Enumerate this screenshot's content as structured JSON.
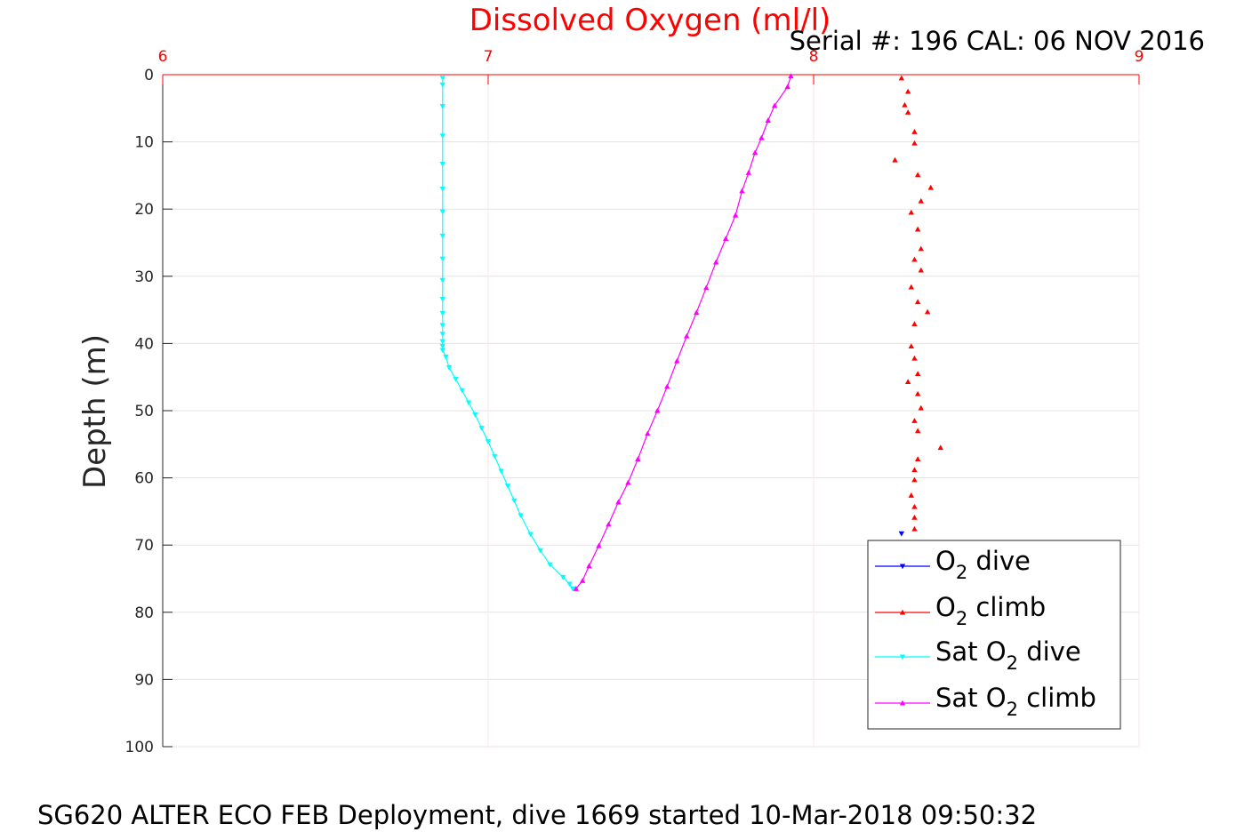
{
  "chart_data": {
    "type": "scatter",
    "title": "Dissolved Oxygen (ml/l)",
    "subtitle": "Serial #: 196  CAL: 06 NOV 2016",
    "xlabel": "",
    "ylabel": "Depth (m)",
    "footer": "SG620 ALTER ECO FEB Deployment, dive 1669 started 10-Mar-2018 09:50:32",
    "xlim": [
      6,
      9
    ],
    "ylim": [
      0,
      100
    ],
    "y_reversed": true,
    "x_axis_position": "top",
    "x_ticks": [
      6,
      7,
      8,
      9
    ],
    "y_ticks": [
      0,
      10,
      20,
      30,
      40,
      50,
      60,
      70,
      80,
      90,
      100
    ],
    "grid": true,
    "legend_position": "bottom-right",
    "colors": {
      "title": "#ff0000",
      "x_ticks": "#ff0000",
      "o2_dive": "#0000ff",
      "o2_climb": "#ff0000",
      "sat_o2_dive": "#00ffff",
      "sat_o2_climb": "#ff00ff"
    },
    "series": [
      {
        "name_parts": [
          "O",
          "2",
          " dive"
        ],
        "color": "#0000ff",
        "marker": "triangle-down",
        "x": [
          8.27
        ],
        "y": [
          68.3
        ]
      },
      {
        "name_parts": [
          "O",
          "2",
          " climb"
        ],
        "color": "#ff0000",
        "marker": "triangle-up",
        "x": [
          8.27,
          8.29,
          8.28,
          8.29,
          8.31,
          8.31,
          8.25,
          8.32,
          8.36,
          8.33,
          8.3,
          8.32,
          8.33,
          8.31,
          8.33,
          8.3,
          8.32,
          8.35,
          8.31,
          8.3,
          8.31,
          8.32,
          8.29,
          8.32,
          8.33,
          8.31,
          8.32,
          8.39,
          8.32,
          8.31,
          8.31,
          8.3,
          8.31,
          8.31,
          8.31
        ],
        "y": [
          0.5,
          2.5,
          4.5,
          5.6,
          8.5,
          10.2,
          12.7,
          14.9,
          16.8,
          18.8,
          20.5,
          23.0,
          25.9,
          27.5,
          29.1,
          31.6,
          33.8,
          35.3,
          37.1,
          40.4,
          42.2,
          44.5,
          45.7,
          47.5,
          49.6,
          51.5,
          53.0,
          55.5,
          57.2,
          58.8,
          60.3,
          62.6,
          64.3,
          65.9,
          67.6
        ]
      },
      {
        "name_parts": [
          "Sat O",
          "2",
          " dive"
        ],
        "color": "#00ffff",
        "marker": "triangle-down",
        "x": [
          6.86,
          6.86,
          6.86,
          6.86,
          6.86,
          6.86,
          6.86,
          6.86,
          6.86,
          6.86,
          6.86,
          6.86,
          6.86,
          6.86,
          6.86,
          6.86,
          6.86,
          6.87,
          6.88,
          6.9,
          6.92,
          6.94,
          6.96,
          6.98,
          7.0,
          7.02,
          7.04,
          7.06,
          7.08,
          7.1,
          7.13,
          7.16,
          7.19,
          7.23,
          7.25,
          7.26
        ],
        "y": [
          0.5,
          1.5,
          4.7,
          9.1,
          13.3,
          17.0,
          20.4,
          24.0,
          27.4,
          30.6,
          33.4,
          35.5,
          37.3,
          38.6,
          39.7,
          40.4,
          41.0,
          42.0,
          43.6,
          45.3,
          47.0,
          48.8,
          50.6,
          52.6,
          54.6,
          56.8,
          59.0,
          61.2,
          63.4,
          65.6,
          68.4,
          70.8,
          72.9,
          74.8,
          75.8,
          76.5
        ]
      },
      {
        "name_parts": [
          "Sat O",
          "2",
          " climb"
        ],
        "color": "#ff00ff",
        "marker": "triangle-up",
        "x": [
          7.27,
          7.29,
          7.31,
          7.34,
          7.37,
          7.4,
          7.43,
          7.46,
          7.49,
          7.52,
          7.55,
          7.58,
          7.61,
          7.64,
          7.67,
          7.7,
          7.73,
          7.76,
          7.78,
          7.8,
          7.82,
          7.84,
          7.86,
          7.88,
          7.92,
          7.93
        ],
        "y": [
          76.5,
          75.3,
          73.1,
          70.1,
          66.9,
          63.6,
          60.7,
          57.2,
          53.4,
          50.0,
          46.4,
          42.6,
          38.9,
          35.4,
          31.7,
          27.9,
          24.4,
          20.9,
          17.3,
          14.6,
          11.6,
          9.4,
          6.8,
          4.6,
          1.8,
          0.2
        ]
      }
    ]
  }
}
